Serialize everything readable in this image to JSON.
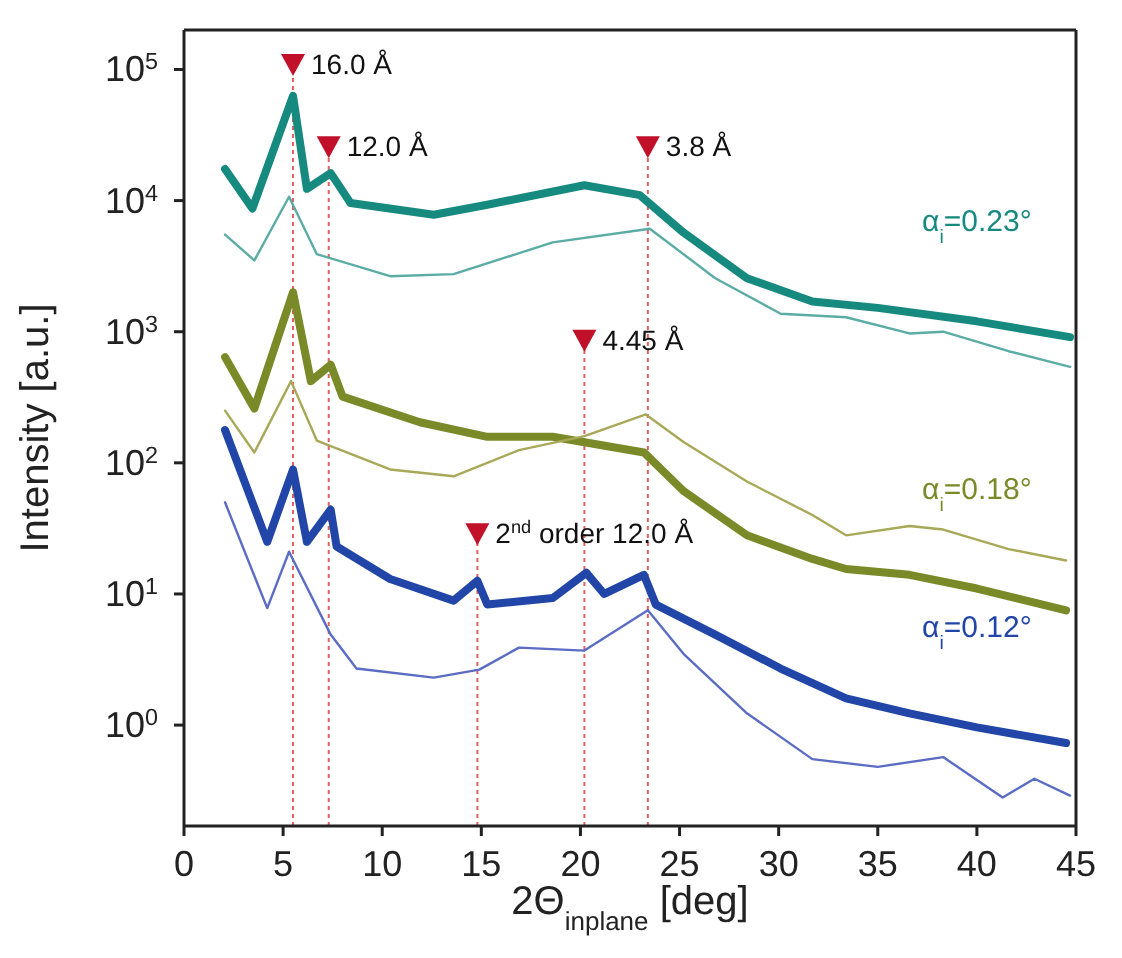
{
  "chart_data": {
    "type": "line",
    "xlabel": "2Θ$_{inplane}$ [deg]",
    "ylabel": "Intensity [a.u.]",
    "log": "y",
    "marker": "none",
    "line_style": "solid",
    "xlim": [
      0,
      45
    ],
    "xticks": [
      0,
      5,
      10,
      15,
      20,
      25,
      30,
      35,
      40,
      45
    ],
    "ylim": [
      0.17,
      200000
    ],
    "yticks": [
      {
        "value": 1,
        "label": "10$^{0}$"
      },
      {
        "value": 10,
        "label": "10$^{1}$"
      },
      {
        "value": 100,
        "label": "10$^{2}$"
      },
      {
        "value": 1000,
        "label": "10$^{3}$"
      },
      {
        "value": 10000,
        "label": "10$^{4}$"
      },
      {
        "value": 100000,
        "label": "10$^{5}$"
      }
    ],
    "series": [
      {
        "name": "α$_{i}$=0.23°",
        "color": "#178a80",
        "x": [
          2.07,
          3.45,
          5.5,
          6.2,
          7.4,
          8.4,
          12.6,
          15.3,
          20.2,
          23.0,
          25.2,
          28.4,
          31.7,
          35.0,
          40.0,
          44.7
        ],
        "values": [
          17400,
          8700,
          63000,
          12300,
          16200,
          9600,
          7800,
          9300,
          13100,
          11000,
          5700,
          2560,
          1700,
          1520,
          1200,
          910
        ]
      },
      {
        "color": "#5aaca4",
        "x": [
          2.07,
          3.55,
          5.3,
          6.7,
          10.4,
          13.6,
          18.6,
          23.5,
          26.8,
          30.1,
          33.4,
          36.6,
          38.3,
          41.6,
          44.7
        ],
        "values": [
          5500,
          3500,
          10700,
          3900,
          2650,
          2750,
          4800,
          6100,
          2560,
          1370,
          1290,
          970,
          1000,
          710,
          540
        ]
      },
      {
        "name": "α$_{i}$=0.18°",
        "color": "#7a8a28",
        "x": [
          2.07,
          3.55,
          5.5,
          6.4,
          7.4,
          8.0,
          11.9,
          15.3,
          18.6,
          23.2,
          25.2,
          28.4,
          31.7,
          33.4,
          36.6,
          40.0,
          44.5
        ],
        "values": [
          640,
          260,
          2000,
          420,
          560,
          320,
          204,
          158,
          158,
          120,
          61,
          28,
          18.5,
          15.5,
          14,
          11,
          7.5
        ]
      },
      {
        "color": "#a8a858",
        "x": [
          2.07,
          3.55,
          5.4,
          6.7,
          10.4,
          13.6,
          16.9,
          20.2,
          23.3,
          25.2,
          28.4,
          31.7,
          33.4,
          36.6,
          38.3,
          41.6,
          44.5
        ],
        "values": [
          250,
          120,
          420,
          148,
          89,
          79,
          125,
          160,
          234,
          144,
          72,
          40,
          28,
          33,
          31,
          22,
          18
        ]
      },
      {
        "name": "α$_{i}$=0.12°",
        "color": "#2146a8",
        "x": [
          2.07,
          4.2,
          5.5,
          6.2,
          7.4,
          7.7,
          10.4,
          13.6,
          14.8,
          15.3,
          18.6,
          20.3,
          21.2,
          23.2,
          23.8,
          26.8,
          30.1,
          33.4,
          36.6,
          40.0,
          44.5
        ],
        "values": [
          178,
          25,
          89,
          25,
          44,
          23,
          13,
          8.9,
          12.6,
          8.3,
          9.3,
          14.5,
          10,
          14,
          8.3,
          4.9,
          2.7,
          1.6,
          1.23,
          0.96,
          0.73
        ]
      },
      {
        "color": "#5a6cc4",
        "x": [
          2.07,
          4.2,
          5.3,
          7.4,
          8.7,
          12.6,
          14.9,
          16.9,
          20.2,
          23.4,
          25.2,
          28.4,
          31.7,
          35.0,
          38.3,
          41.3,
          42.9,
          44.7
        ],
        "values": [
          50,
          7.8,
          21,
          4.9,
          2.7,
          2.3,
          2.65,
          3.9,
          3.7,
          7.5,
          3.5,
          1.23,
          0.55,
          0.48,
          0.57,
          0.28,
          0.39,
          0.29
        ]
      }
    ],
    "ref_lines": [
      {
        "axis": "x",
        "value": 5.5,
        "color": "#e06060",
        "line_style": "dotted"
      },
      {
        "axis": "x",
        "value": 7.3,
        "color": "#e06060",
        "line_style": "dotted"
      },
      {
        "axis": "x",
        "value": 14.8,
        "color": "#e06060",
        "line_style": "dotted"
      },
      {
        "axis": "x",
        "value": 20.2,
        "color": "#e06060",
        "line_style": "dotted"
      },
      {
        "axis": "x",
        "value": 23.4,
        "color": "#e06060",
        "line_style": "dotted"
      }
    ],
    "annotations": [
      {
        "text": "16.0 Å",
        "x": 5.5,
        "y": 110000
      },
      {
        "text": "12.0 Å",
        "x": 7.3,
        "y": 26000
      },
      {
        "text": "3.8 Å",
        "x": 23.4,
        "y": 26000
      },
      {
        "text": "4.45 Å",
        "x": 20.2,
        "y": 870
      },
      {
        "text": "2$^{nd}$ order 12.0 Å",
        "x": 14.8,
        "y": 29
      }
    ]
  }
}
